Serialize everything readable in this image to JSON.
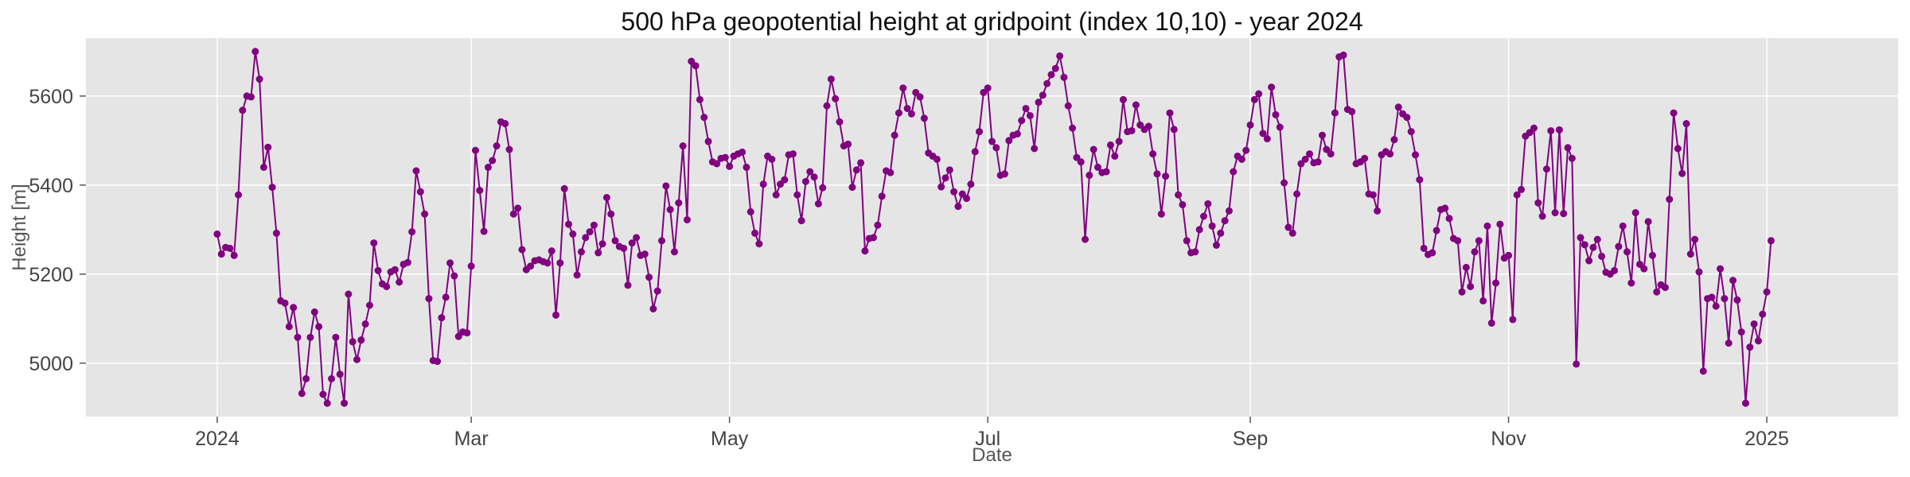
{
  "chart_data": {
    "type": "line",
    "title": "500 hPa geopotential height at gridpoint (index 10,10) - year 2024",
    "xlabel": "Date",
    "ylabel": "Height [m]",
    "grid": true,
    "legend": "none",
    "x_range": [
      "2023-12-01",
      "2025-02-01"
    ],
    "ylim": [
      4880,
      5730
    ],
    "x_ticks": [
      {
        "date": "2024-01-01",
        "label": "2024"
      },
      {
        "date": "2024-03-01",
        "label": "Mar"
      },
      {
        "date": "2024-05-01",
        "label": "May"
      },
      {
        "date": "2024-07-01",
        "label": "Jul"
      },
      {
        "date": "2024-09-01",
        "label": "Sep"
      },
      {
        "date": "2024-11-01",
        "label": "Nov"
      },
      {
        "date": "2025-01-01",
        "label": "2025"
      }
    ],
    "y_ticks": [
      5000,
      5200,
      5400,
      5600
    ],
    "colors": {
      "line": "#800080",
      "marker": "#800080",
      "plot_bg": "#e5e5e5",
      "grid": "#ffffff"
    },
    "series": [
      {
        "start_date": "2024-01-01",
        "step_days": 1,
        "values": [
          5290,
          5245,
          5260,
          5258,
          5242,
          5378,
          5568,
          5600,
          5598,
          5700,
          5638,
          5440,
          5485,
          5395,
          5292,
          5140,
          5135,
          5082,
          5125,
          5058,
          4932,
          4965,
          5058,
          5115,
          5082,
          4930,
          4910,
          4965,
          5058,
          4975,
          4910,
          5155,
          5048,
          5008,
          5052,
          5088,
          5130,
          5270,
          5208,
          5178,
          5172,
          5205,
          5210,
          5182,
          5222,
          5226,
          5295,
          5432,
          5385,
          5335,
          5145,
          5006,
          5004,
          5102,
          5148,
          5225,
          5196,
          5060,
          5070,
          5068,
          5218,
          5478,
          5388,
          5296,
          5440,
          5455,
          5488,
          5542,
          5538,
          5480,
          5335,
          5348,
          5255,
          5210,
          5218,
          5230,
          5232,
          5228,
          5225,
          5252,
          5108,
          5225,
          5392,
          5312,
          5290,
          5198,
          5250,
          5282,
          5295,
          5310,
          5248,
          5268,
          5372,
          5335,
          5275,
          5262,
          5258,
          5175,
          5270,
          5282,
          5242,
          5245,
          5193,
          5122,
          5162,
          5275,
          5398,
          5345,
          5250,
          5360,
          5488,
          5322,
          5678,
          5668,
          5592,
          5552,
          5498,
          5452,
          5448,
          5460,
          5462,
          5442,
          5465,
          5470,
          5474,
          5440,
          5340,
          5292,
          5268,
          5402,
          5465,
          5458,
          5378,
          5402,
          5412,
          5468,
          5470,
          5378,
          5320,
          5408,
          5430,
          5418,
          5358,
          5394,
          5578,
          5638,
          5594,
          5542,
          5488,
          5492,
          5395,
          5434,
          5450,
          5252,
          5280,
          5282,
          5310,
          5375,
          5432,
          5428,
          5512,
          5562,
          5618,
          5572,
          5560,
          5608,
          5598,
          5550,
          5472,
          5465,
          5458,
          5396,
          5416,
          5434,
          5385,
          5352,
          5380,
          5370,
          5402,
          5475,
          5520,
          5608,
          5618,
          5498,
          5484,
          5422,
          5425,
          5500,
          5512,
          5515,
          5545,
          5572,
          5556,
          5482,
          5586,
          5602,
          5628,
          5648,
          5662,
          5690,
          5642,
          5578,
          5528,
          5462,
          5452,
          5278,
          5422,
          5480,
          5440,
          5428,
          5430,
          5490,
          5465,
          5498,
          5592,
          5520,
          5522,
          5580,
          5535,
          5525,
          5532,
          5470,
          5425,
          5335,
          5420,
          5562,
          5525,
          5378,
          5356,
          5275,
          5248,
          5250,
          5300,
          5330,
          5358,
          5308,
          5265,
          5292,
          5320,
          5342,
          5430,
          5465,
          5458,
          5478,
          5535,
          5592,
          5605,
          5516,
          5504,
          5620,
          5558,
          5530,
          5405,
          5305,
          5292,
          5380,
          5448,
          5458,
          5470,
          5450,
          5452,
          5512,
          5480,
          5470,
          5562,
          5688,
          5692,
          5570,
          5565,
          5448,
          5452,
          5460,
          5380,
          5378,
          5342,
          5468,
          5475,
          5470,
          5502,
          5575,
          5560,
          5552,
          5520,
          5468,
          5412,
          5258,
          5244,
          5248,
          5298,
          5345,
          5348,
          5325,
          5280,
          5275,
          5160,
          5215,
          5172,
          5250,
          5275,
          5140,
          5308,
          5090,
          5180,
          5312,
          5236,
          5242,
          5098,
          5378,
          5390,
          5510,
          5518,
          5528,
          5360,
          5330,
          5436,
          5522,
          5338,
          5524,
          5336,
          5484,
          5460,
          4998,
          5282,
          5266,
          5230,
          5260,
          5278,
          5240,
          5204,
          5200,
          5208,
          5262,
          5308,
          5250,
          5180,
          5338,
          5222,
          5212,
          5318,
          5242,
          5160,
          5176,
          5170,
          5368,
          5562,
          5482,
          5426,
          5538,
          5245,
          5278,
          5205,
          4982,
          5145,
          5148,
          5128,
          5212,
          5145,
          5045,
          5186,
          5142,
          5070,
          4910,
          5036,
          5088,
          5050,
          5110,
          5160,
          5275
        ]
      }
    ]
  }
}
